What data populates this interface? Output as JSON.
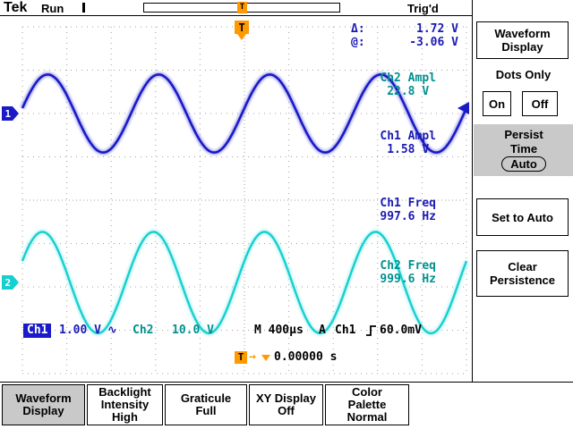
{
  "colors": {
    "ch1": "#1a1ac8",
    "ch1_glow": "#8f8fe8",
    "ch2": "#17cfcf",
    "ch2_glow": "#aef2f2",
    "navy_text": "#1a1ab4",
    "teal_text": "#009090",
    "orange": "#ff9900",
    "selected_gray": "#c9c9c9",
    "grid": "#a0a0a0"
  },
  "top_bar": {
    "logo": "Tek",
    "acquisition_status": "Run",
    "trigger_status": "Trig'd",
    "record_trigger_marker": "T"
  },
  "screen": {
    "cursor_delta_label": "Δ:",
    "cursor_delta_value": "1.72 V",
    "cursor_at_label": "@:",
    "cursor_at_value": "-3.06 V",
    "measurements": [
      {
        "label": "Ch2 Ampl",
        "value": "22.8 V"
      },
      {
        "label": "Ch1 Ampl",
        "value": "1.58 V"
      },
      {
        "label": "Ch1 Freq",
        "value": "997.6 Hz"
      },
      {
        "label": "Ch2 Freq",
        "value": "999.6 Hz"
      }
    ],
    "status": {
      "ch1_label": "Ch1",
      "ch1_scale": "1.00 V",
      "ch1_coupling": "∿",
      "ch2_label": "Ch2",
      "ch2_scale": "10.0 V",
      "timebase": "M 400µs",
      "acq_mode": "A",
      "trigger_source": "Ch1",
      "trigger_level": "60.0mV"
    },
    "trigger_time_icon_t": "T",
    "trigger_time_icon_arrow": "→",
    "trigger_time_value": "0.00000 s",
    "marker1": "1",
    "marker2": "2",
    "trigger_flag": "T"
  },
  "waveforms": {
    "divisions": {
      "cols": 10,
      "rows": 8
    },
    "traces": [
      {
        "name": "ch1",
        "center_div": 2.0,
        "amplitude_div": 0.9,
        "cycles": 4,
        "peak_offset_div": 0.57,
        "width": 2.6,
        "color": "#1a1ac8",
        "glow": "#8f8fe8"
      },
      {
        "name": "ch2",
        "center_div": 5.9,
        "amplitude_div": 1.17,
        "cycles": 4,
        "peak_offset_div": 0.45,
        "width": 2.4,
        "color": "#17cfcf",
        "glow": "#aef2f2"
      }
    ]
  },
  "side_menu": {
    "title": "Waveform\nDisplay",
    "dots_label": "Dots Only",
    "on_label": "On",
    "off_label": "Off",
    "persist_line1": "Persist",
    "persist_line2": "Time",
    "persist_value": "Auto",
    "set_to_auto_label": "Set to Auto",
    "clear_label": "Clear\nPersistence"
  },
  "bottom_menu": {
    "items": [
      {
        "label": "Waveform\nDisplay",
        "selected": true
      },
      {
        "label": "Backlight\nIntensity\nHigh",
        "selected": false
      },
      {
        "label": "Graticule\nFull",
        "selected": false
      },
      {
        "label": "XY Display\nOff",
        "selected": false
      },
      {
        "label": "Color\nPalette\nNormal",
        "selected": false
      }
    ]
  }
}
